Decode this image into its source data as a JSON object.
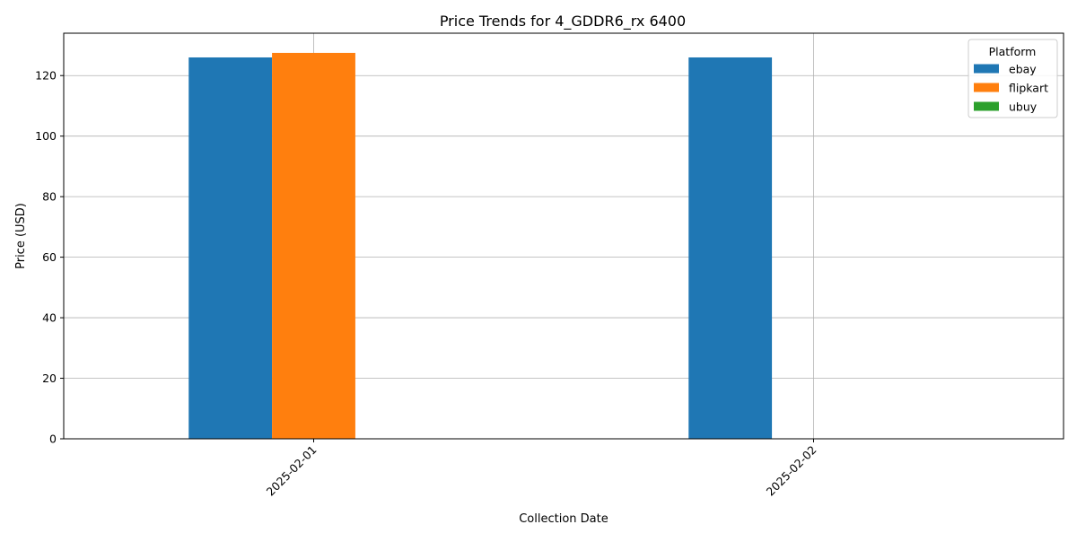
{
  "chart_data": {
    "type": "bar",
    "title": "Price Trends for 4_GDDR6_rx 6400",
    "xlabel": "Collection Date",
    "ylabel": "Price (USD)",
    "categories": [
      "2025-02-01",
      "2025-02-02"
    ],
    "series": [
      {
        "name": "ebay",
        "color": "#1f77b4",
        "values": [
          126,
          126
        ]
      },
      {
        "name": "flipkart",
        "color": "#ff7f0e",
        "values": [
          127.5,
          null
        ]
      },
      {
        "name": "ubuy",
        "color": "#2ca02c",
        "values": [
          null,
          null
        ]
      }
    ],
    "ylim": [
      0,
      134
    ],
    "yticks": [
      0,
      20,
      40,
      60,
      80,
      100,
      120
    ],
    "grid": true,
    "legend": {
      "title": "Platform",
      "placement": "top-right"
    }
  }
}
